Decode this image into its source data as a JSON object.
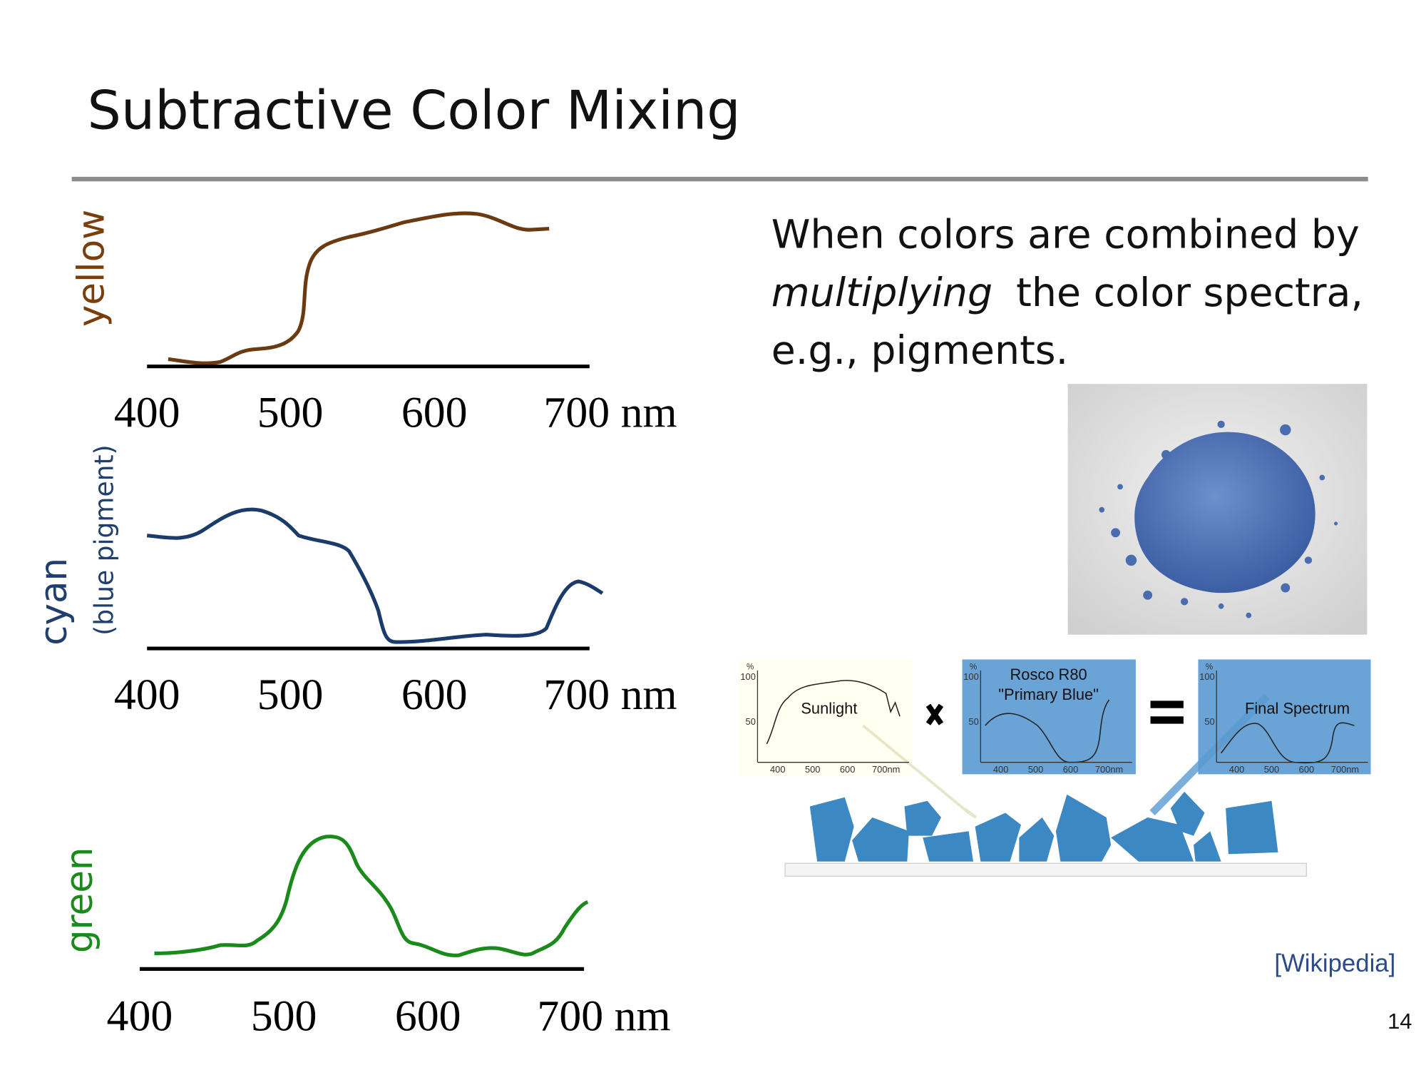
{
  "title": "Subtractive Color Mixing",
  "spectra": [
    {
      "label": "yellow",
      "ticks": [
        "400",
        "500",
        "600",
        "700 nm"
      ]
    },
    {
      "label": "cyan",
      "sublabel": "(blue pigment)",
      "ticks": [
        "400",
        "500",
        "600",
        "700 nm"
      ]
    },
    {
      "label": "green",
      "ticks": [
        "400",
        "500",
        "600",
        "700 nm"
      ]
    }
  ],
  "body": {
    "line1": "When colors are combined by",
    "emph": "multiplying",
    "line2": "the color spectra,",
    "line3": "e.g., pigments."
  },
  "diagram": {
    "panels": [
      {
        "unit": "%",
        "y100": "100",
        "y50": "50",
        "label": "Sunlight",
        "xticks": [
          "400",
          "500",
          "600",
          "700nm"
        ]
      },
      {
        "unit": "%",
        "y100": "100",
        "y50": "50",
        "label": "Rosco R80",
        "label2": "\"Primary Blue\"",
        "xticks": [
          "400",
          "500",
          "600",
          "700nm"
        ]
      },
      {
        "unit": "%",
        "y100": "100",
        "y50": "50",
        "label": "Final Spectrum",
        "xticks": [
          "400",
          "500",
          "600",
          "700nm"
        ]
      }
    ]
  },
  "source": "[Wikipedia]",
  "page": "14"
}
